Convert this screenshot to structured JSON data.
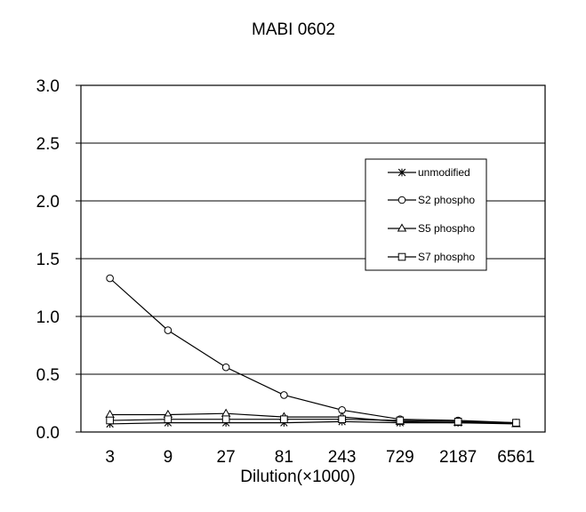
{
  "chart_data": {
    "type": "line",
    "title": "MABI 0602",
    "xlabel": "Dilution(×1000)",
    "ylabel": "",
    "categories": [
      "3",
      "9",
      "27",
      "81",
      "243",
      "729",
      "2187",
      "6561"
    ],
    "ylim": [
      0,
      3.0
    ],
    "yticks": [
      "0.0",
      "0.5",
      "1.0",
      "1.5",
      "2.0",
      "2.5",
      "3.0"
    ],
    "grid": "horizontal",
    "legend_position": "right",
    "series": [
      {
        "name": "unmodified",
        "marker": "asterisk",
        "values": [
          0.07,
          0.08,
          0.08,
          0.08,
          0.09,
          0.08,
          0.08,
          0.08
        ]
      },
      {
        "name": "S2 phospho",
        "marker": "circle",
        "values": [
          1.33,
          0.88,
          0.56,
          0.32,
          0.19,
          0.11,
          0.1,
          0.08
        ]
      },
      {
        "name": "S5 phospho",
        "marker": "triangle",
        "values": [
          0.15,
          0.15,
          0.16,
          0.13,
          0.13,
          0.09,
          0.08,
          0.07
        ]
      },
      {
        "name": "S7 phospho",
        "marker": "square",
        "values": [
          0.1,
          0.11,
          0.11,
          0.11,
          0.11,
          0.1,
          0.09,
          0.08
        ]
      }
    ]
  }
}
